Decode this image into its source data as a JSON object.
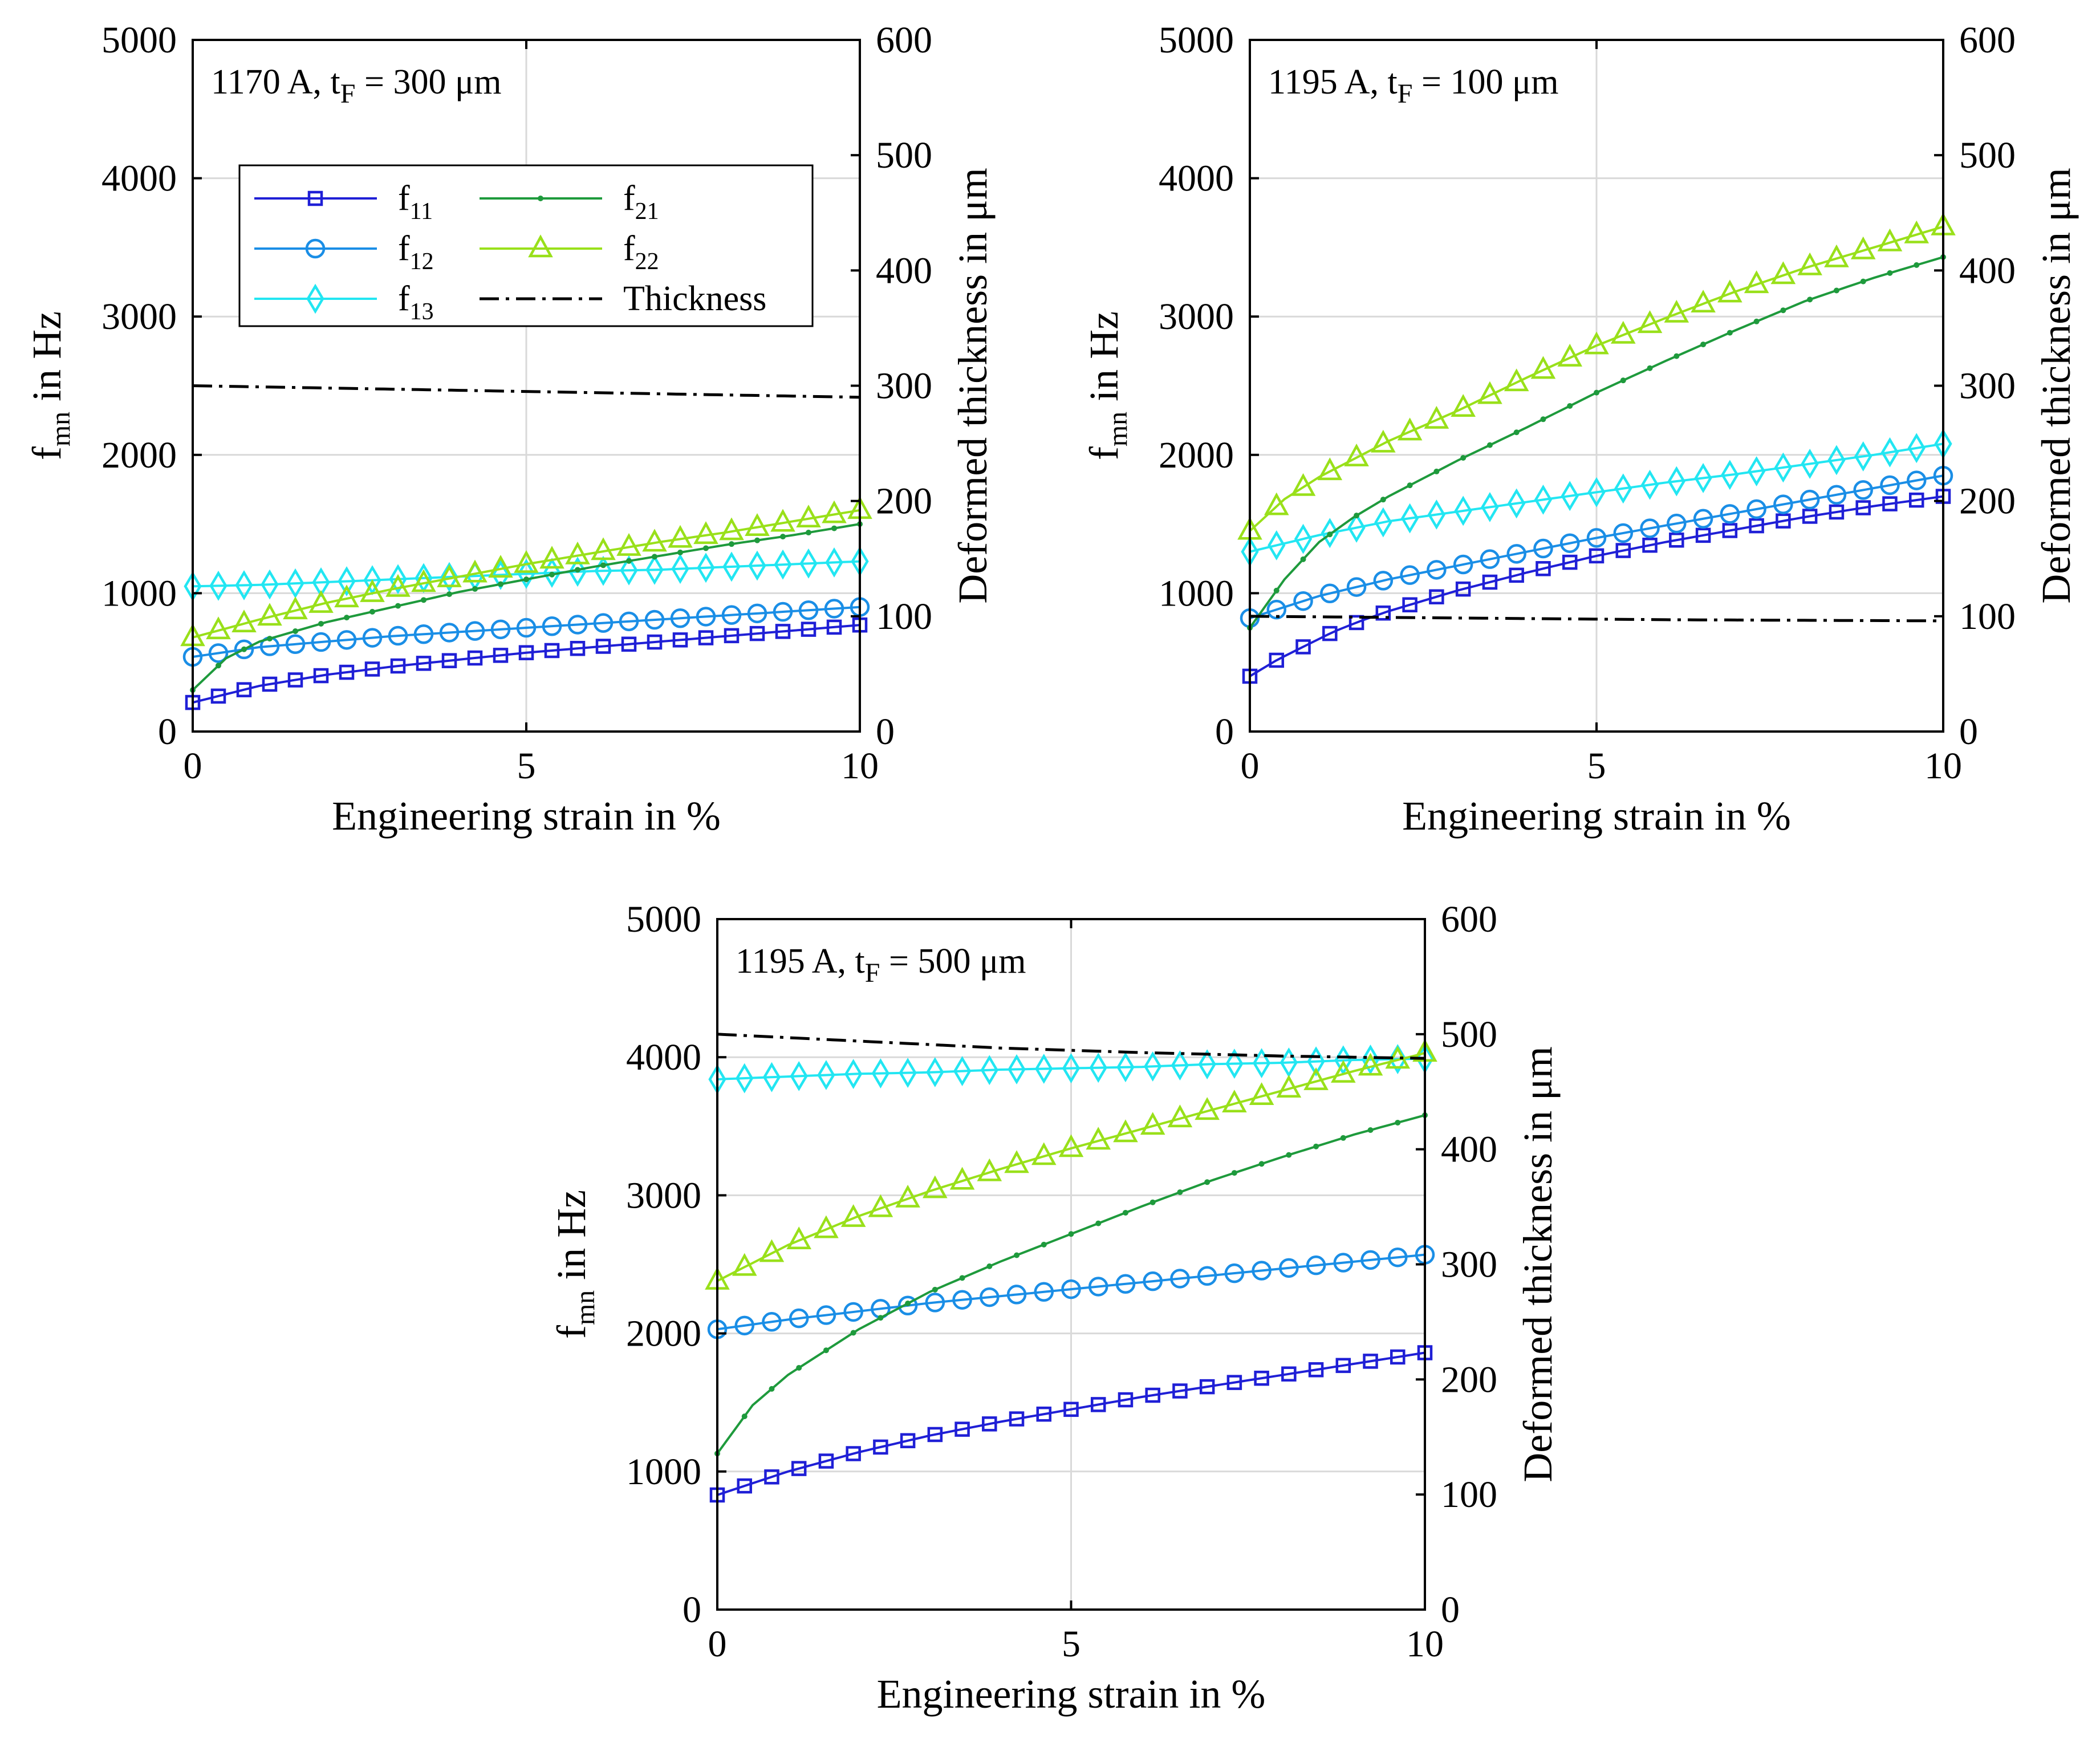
{
  "series_meta": [
    {
      "key": "f11",
      "label": "f",
      "sub": "11",
      "color": "#1f1fd6",
      "marker": "square",
      "style": "solid"
    },
    {
      "key": "f12",
      "label": "f",
      "sub": "12",
      "color": "#1a8ee6",
      "marker": "circle",
      "style": "solid"
    },
    {
      "key": "f13",
      "label": "f",
      "sub": "13",
      "color": "#22e6f2",
      "marker": "diamond",
      "style": "solid"
    },
    {
      "key": "f21",
      "label": "f",
      "sub": "21",
      "color": "#1e9a3c",
      "marker": "dot",
      "style": "solid"
    },
    {
      "key": "f22",
      "label": "f",
      "sub": "22",
      "color": "#99e01a",
      "marker": "triangle",
      "style": "solid"
    },
    {
      "key": "thickness",
      "label": "Thickness",
      "sub": "",
      "color": "#000000",
      "marker": "none",
      "style": "dashdot"
    }
  ],
  "chart_data": [
    {
      "type": "line",
      "annotation": {
        "pre": "1170 A, t",
        "sub": "F",
        "post": " = 300 μm"
      },
      "xlabel": "Engineering strain in %",
      "ylabel": {
        "main": "f",
        "sub": "mn",
        "post": " in Hz"
      },
      "y2label": "Deformed thickness in μm",
      "xlim": [
        0,
        10
      ],
      "ylim": [
        0,
        5000
      ],
      "y2lim": [
        0,
        600
      ],
      "xticks": [
        0,
        5,
        10
      ],
      "yticks": [
        0,
        1000,
        2000,
        3000,
        4000,
        5000
      ],
      "y2ticks": [
        0,
        100,
        200,
        300,
        400,
        500,
        600
      ],
      "grid": true,
      "legend": "top-left",
      "series": {
        "f11": {
          "x": [
            0,
            1,
            2,
            3,
            4,
            5,
            6,
            7,
            8,
            9,
            10
          ],
          "y": [
            210,
            330,
            410,
            470,
            520,
            570,
            610,
            650,
            690,
            730,
            770
          ]
        },
        "f12": {
          "x": [
            0,
            1,
            2,
            3,
            4,
            5,
            6,
            7,
            8,
            9,
            10
          ],
          "y": [
            540,
            610,
            650,
            690,
            720,
            750,
            780,
            810,
            840,
            870,
            900
          ]
        },
        "f13": {
          "x": [
            0,
            1,
            2,
            3,
            4,
            5,
            6,
            7,
            8,
            9,
            10
          ],
          "y": [
            1050,
            1060,
            1080,
            1100,
            1120,
            1140,
            1160,
            1170,
            1190,
            1210,
            1230
          ]
        },
        "f21": {
          "x": [
            0,
            0.5,
            1,
            2,
            3,
            4,
            5,
            6,
            7,
            8,
            9,
            10
          ],
          "y": [
            300,
            530,
            650,
            790,
            900,
            1010,
            1100,
            1190,
            1270,
            1350,
            1420,
            1500
          ]
        },
        "f22": {
          "x": [
            0,
            1,
            2,
            3,
            4,
            5,
            6,
            7,
            8,
            9,
            10
          ],
          "y": [
            680,
            810,
            930,
            1030,
            1120,
            1210,
            1290,
            1370,
            1440,
            1520,
            1600
          ]
        },
        "thickness": {
          "x": [
            0,
            2,
            4,
            6,
            8,
            10
          ],
          "y": [
            300,
            298,
            296,
            294,
            292,
            290
          ]
        }
      }
    },
    {
      "type": "line",
      "annotation": {
        "pre": "1195 A, t",
        "sub": "F",
        "post": " = 100 μm"
      },
      "xlabel": "Engineering strain in %",
      "ylabel": {
        "main": "f",
        "sub": "mn",
        "post": " in Hz"
      },
      "y2label": "Deformed thickness in μm",
      "xlim": [
        0,
        10
      ],
      "ylim": [
        0,
        5000
      ],
      "y2lim": [
        0,
        600
      ],
      "xticks": [
        0,
        5,
        10
      ],
      "yticks": [
        0,
        1000,
        2000,
        3000,
        4000,
        5000
      ],
      "y2ticks": [
        0,
        100,
        200,
        300,
        400,
        500,
        600
      ],
      "grid": true,
      "series": {
        "f11": {
          "x": [
            0,
            0.4,
            0.8,
            1.2,
            1.6,
            2,
            3,
            4,
            5,
            6,
            7,
            8,
            9,
            10
          ],
          "y": [
            400,
            520,
            620,
            720,
            800,
            870,
            1020,
            1150,
            1270,
            1370,
            1460,
            1550,
            1630,
            1700
          ]
        },
        "f12": {
          "x": [
            0,
            1,
            2,
            3,
            4,
            5,
            6,
            7,
            8,
            9,
            10
          ],
          "y": [
            820,
            980,
            1100,
            1200,
            1300,
            1400,
            1490,
            1580,
            1670,
            1760,
            1850
          ]
        },
        "f13": {
          "x": [
            0,
            1,
            2,
            3,
            4,
            5,
            6,
            7,
            8,
            9,
            10
          ],
          "y": [
            1300,
            1420,
            1520,
            1590,
            1660,
            1730,
            1800,
            1860,
            1930,
            2000,
            2080
          ]
        },
        "f21": {
          "x": [
            0,
            0.5,
            1,
            1.5,
            2,
            3,
            4,
            5,
            6,
            7,
            8,
            9,
            10
          ],
          "y": [
            750,
            1100,
            1370,
            1550,
            1700,
            1960,
            2200,
            2450,
            2680,
            2900,
            3110,
            3280,
            3430
          ]
        },
        "f22": {
          "x": [
            0,
            0.5,
            1,
            2,
            3,
            4,
            5,
            6,
            7,
            8,
            9,
            10
          ],
          "y": [
            1450,
            1680,
            1840,
            2100,
            2320,
            2560,
            2790,
            2990,
            3180,
            3350,
            3500,
            3650
          ]
        },
        "thickness": {
          "x": [
            0,
            2,
            4,
            6,
            8,
            10
          ],
          "y": [
            100,
            99,
            98,
            97,
            96.5,
            96
          ]
        }
      }
    },
    {
      "type": "line",
      "annotation": {
        "pre": "1195 A, t",
        "sub": "F",
        "post": " = 500 μm"
      },
      "xlabel": "Engineering strain in %",
      "ylabel": {
        "main": "f",
        "sub": "mn",
        "post": " in Hz"
      },
      "y2label": "Deformed thickness in μm",
      "xlim": [
        0,
        10
      ],
      "ylim": [
        0,
        5000
      ],
      "y2lim": [
        0,
        600
      ],
      "xticks": [
        0,
        5,
        10
      ],
      "yticks": [
        0,
        1000,
        2000,
        3000,
        4000,
        5000
      ],
      "y2ticks": [
        0,
        100,
        200,
        300,
        400,
        500,
        600
      ],
      "grid": true,
      "series": {
        "f11": {
          "x": [
            0,
            1,
            2,
            3,
            4,
            5,
            6,
            7,
            8,
            9,
            10
          ],
          "y": [
            830,
            1000,
            1140,
            1260,
            1360,
            1450,
            1540,
            1620,
            1700,
            1780,
            1860
          ]
        },
        "f12": {
          "x": [
            0,
            1,
            2,
            3,
            4,
            5,
            6,
            7,
            8,
            9,
            10
          ],
          "y": [
            2030,
            2100,
            2160,
            2220,
            2270,
            2320,
            2370,
            2420,
            2470,
            2520,
            2570
          ]
        },
        "f13": {
          "x": [
            0,
            1,
            2,
            3,
            4,
            5,
            6,
            7,
            8,
            9,
            10
          ],
          "y": [
            3840,
            3860,
            3880,
            3890,
            3910,
            3920,
            3930,
            3950,
            3960,
            3980,
            3990
          ]
        },
        "f21": {
          "x": [
            0,
            0.5,
            1,
            2,
            3,
            4,
            5,
            6,
            7,
            8,
            9,
            10
          ],
          "y": [
            1130,
            1480,
            1700,
            2030,
            2300,
            2520,
            2720,
            2920,
            3110,
            3280,
            3440,
            3580
          ]
        },
        "f22": {
          "x": [
            0,
            1,
            2,
            3,
            4,
            5,
            6,
            7,
            8,
            9,
            10
          ],
          "y": [
            2380,
            2640,
            2850,
            3030,
            3190,
            3340,
            3480,
            3620,
            3760,
            3900,
            4030
          ]
        },
        "thickness": {
          "x": [
            0,
            2,
            4,
            6,
            8,
            10
          ],
          "y": [
            500,
            494,
            488,
            484,
            481,
            479
          ]
        }
      }
    }
  ]
}
